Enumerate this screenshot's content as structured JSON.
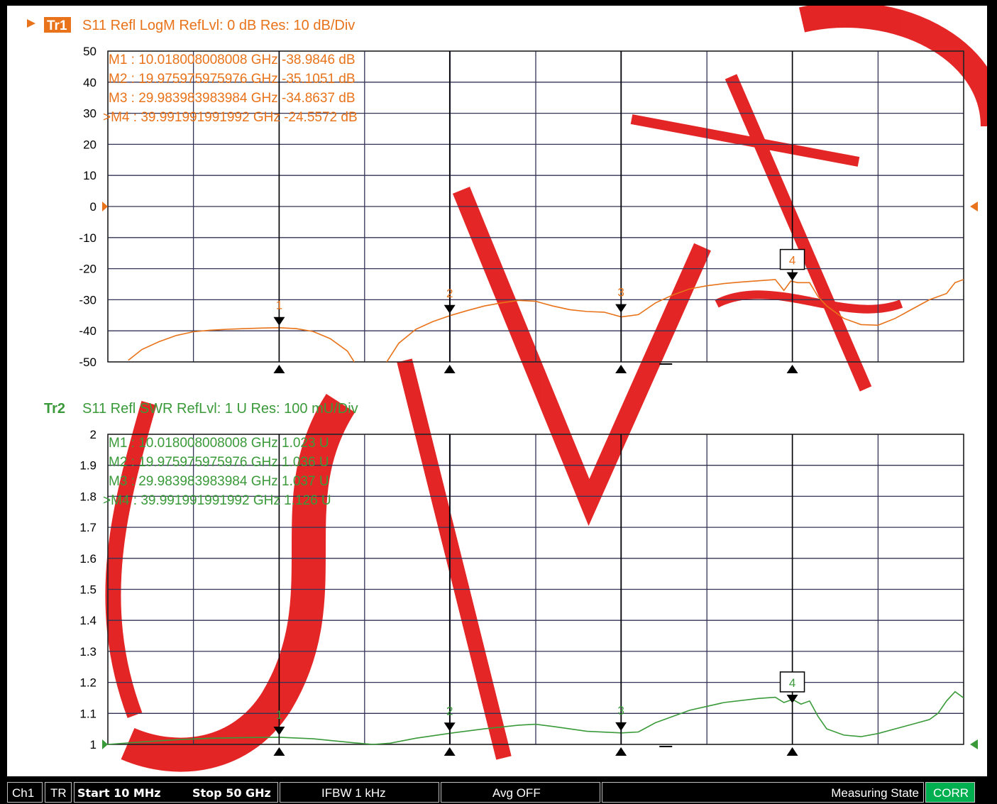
{
  "colors": {
    "trace1": "#e8731a",
    "trace2": "#3a9a3a",
    "grid": "#333355",
    "status_ok": "#00b050",
    "watermark": "#e00000"
  },
  "chart_data": [
    {
      "type": "line",
      "id": "tr1",
      "trace_label": "Tr1",
      "title": "S11 Refl LogM RefLvl: 0  dB Res: 10  dB/Div",
      "xlim": [
        0.01,
        50
      ],
      "ylim": [
        -50,
        50
      ],
      "y_ticks": [
        "50",
        "40",
        "30",
        "20",
        "10",
        "0",
        "-10",
        "-20",
        "-30",
        "-40",
        "-50"
      ],
      "grid": true,
      "markers": [
        {
          "id": "1",
          "line": "M1  :  10.018008008008 GHz -38.9846  dB",
          "x": 10.018,
          "y": -38.98
        },
        {
          "id": "2",
          "line": "M2  :  19.975975975976 GHz -35.1051  dB",
          "x": 19.976,
          "y": -35.11
        },
        {
          "id": "3",
          "line": "M3  :  29.983983983984 GHz -34.8637  dB",
          "x": 29.984,
          "y": -34.86
        },
        {
          "id": "4",
          "line": ">M4  :  39.991991991992 GHz -24.5572  dB",
          "x": 39.992,
          "y": -24.56,
          "active": true
        }
      ],
      "series": [
        {
          "segments": [
            {
              "x": [
                1.2,
                2,
                3,
                4,
                5,
                6,
                7,
                8,
                9,
                10,
                11,
                12,
                13,
                14,
                14.4
              ],
              "y": [
                -49.5,
                -46,
                -43.5,
                -41.5,
                -40.3,
                -39.8,
                -39.5,
                -39.3,
                -39.1,
                -39,
                -39.3,
                -40.2,
                -42.5,
                -46.5,
                -50
              ]
            },
            {
              "x": [
                16.3,
                17,
                18,
                19,
                20,
                21,
                22,
                23,
                24,
                25,
                26,
                27,
                28,
                29,
                30,
                31,
                32,
                33,
                34,
                35,
                36,
                37,
                38,
                39,
                39.5,
                39.9,
                40.3,
                41,
                41.5,
                42,
                43,
                44,
                45,
                46,
                47,
                48,
                49,
                49.5,
                50
              ],
              "y": [
                -50,
                -44,
                -39.5,
                -37,
                -35.1,
                -33.5,
                -32,
                -31,
                -30.2,
                -30.5,
                -32,
                -33.2,
                -33.8,
                -34,
                -35.5,
                -34.8,
                -31,
                -28.5,
                -26.5,
                -25.5,
                -24.8,
                -24.3,
                -23.9,
                -23.5,
                -27,
                -24,
                -24.5,
                -24.5,
                -29,
                -32,
                -36,
                -38,
                -38.2,
                -36,
                -33,
                -30,
                -28,
                -24.5,
                -23.5
              ]
            }
          ]
        }
      ]
    },
    {
      "type": "line",
      "id": "tr2",
      "trace_label": "Tr2",
      "title": "S11 Refl SWR RefLvl: 1  U Res: 100 mU/Div",
      "xlim": [
        0.01,
        50
      ],
      "ylim": [
        1,
        2
      ],
      "y_ticks": [
        "2",
        "1.9",
        "1.8",
        "1.7",
        "1.6",
        "1.5",
        "1.4",
        "1.3",
        "1.2",
        "1.1",
        "1"
      ],
      "grid": true,
      "markers": [
        {
          "id": "1",
          "line": "M1  :  10.018008008008 GHz  1.023  U",
          "x": 10.018,
          "y": 1.023
        },
        {
          "id": "2",
          "line": "M2  :  19.975975975976 GHz  1.036  U",
          "x": 19.976,
          "y": 1.036
        },
        {
          "id": "3",
          "line": "M3  :  29.983983983984 GHz  1.037  U",
          "x": 29.984,
          "y": 1.037
        },
        {
          "id": "4",
          "line": ">M4  :  39.991991991992 GHz  1.126  U",
          "x": 39.992,
          "y": 1.126,
          "active": true
        }
      ],
      "series": [
        {
          "segments": [
            {
              "x": [
                0.01,
                2,
                4,
                6,
                8,
                10,
                12,
                14.4,
                15.5,
                16.5,
                18,
                20,
                22,
                24,
                25,
                26,
                28,
                30,
                31,
                32,
                34,
                36,
                38,
                39,
                39.5,
                40,
                40.5,
                41,
                41.5,
                42,
                43,
                44,
                45,
                46,
                47,
                48,
                48.5,
                49,
                49.5,
                50
              ],
              "y": [
                1.0,
                1.008,
                1.015,
                1.02,
                1.022,
                1.023,
                1.018,
                1.005,
                1.0,
                1.004,
                1.02,
                1.036,
                1.05,
                1.062,
                1.065,
                1.058,
                1.042,
                1.037,
                1.04,
                1.07,
                1.11,
                1.135,
                1.148,
                1.152,
                1.135,
                1.145,
                1.13,
                1.14,
                1.09,
                1.05,
                1.03,
                1.025,
                1.035,
                1.05,
                1.065,
                1.08,
                1.1,
                1.14,
                1.17,
                1.15
              ]
            }
          ]
        }
      ]
    }
  ],
  "status_bar": {
    "ch": "Ch1",
    "tr": "TR",
    "start": "Start 10 MHz",
    "stop": "Stop 50 GHz",
    "ifbw": "IFBW 1 kHz",
    "avg": "Avg OFF",
    "state": "Measuring State",
    "corr": "CORR"
  }
}
